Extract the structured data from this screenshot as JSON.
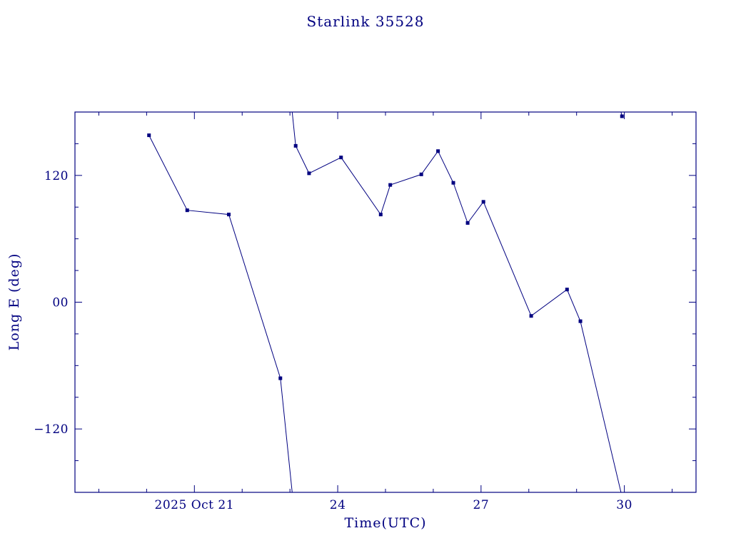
{
  "chart_data": {
    "type": "line",
    "title": "Starlink 35528",
    "xlabel": "Time(UTC)",
    "ylabel": "Long E (deg)",
    "x_units": "day of 2025 Oct (UTC)",
    "xlim": [
      18.5,
      31.5
    ],
    "ylim": [
      -180,
      180
    ],
    "grid": false,
    "legend": false,
    "line_color": "#000080",
    "marker": "filled-square",
    "wrap": 360,
    "x_ticks": [
      {
        "value": 21,
        "label": "2025 Oct 21"
      },
      {
        "value": 24,
        "label": "24"
      },
      {
        "value": 27,
        "label": "27"
      },
      {
        "value": 30,
        "label": "30"
      }
    ],
    "y_ticks": [
      {
        "value": 120,
        "label": "120"
      },
      {
        "value": 0,
        "label": "00"
      },
      {
        "value": -120,
        "label": "−120"
      }
    ],
    "x_minor_step": 1,
    "y_minor_step": 30,
    "series": [
      {
        "name": "Long E (deg)",
        "points": [
          [
            20.05,
            158
          ],
          [
            20.85,
            87
          ],
          [
            21.72,
            83
          ],
          [
            22.8,
            -72
          ],
          [
            23.12,
            148
          ],
          [
            23.4,
            122
          ],
          [
            24.07,
            137
          ],
          [
            24.9,
            83
          ],
          [
            25.1,
            111
          ],
          [
            25.75,
            121
          ],
          [
            26.1,
            143
          ],
          [
            26.42,
            113
          ],
          [
            26.72,
            75
          ],
          [
            27.05,
            95
          ],
          [
            28.05,
            -13
          ],
          [
            28.8,
            12
          ],
          [
            29.08,
            -18
          ],
          [
            29.95,
            176
          ]
        ]
      }
    ]
  }
}
